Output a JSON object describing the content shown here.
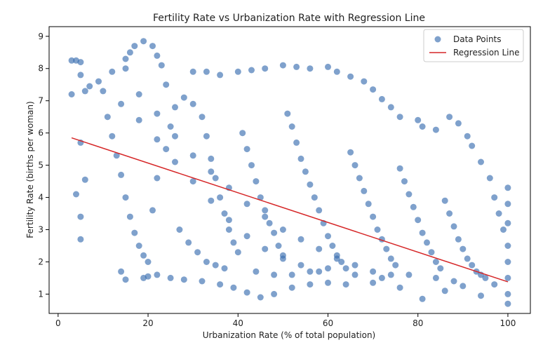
{
  "chart_data": {
    "type": "scatter",
    "title": "Fertility Rate vs Urbanization Rate with Regression Line",
    "xlabel": "Urbanization Rate (% of total population)",
    "ylabel": "Fertility Rate (births per woman)",
    "xlim": [
      -2,
      105
    ],
    "ylim": [
      0.4,
      9.3
    ],
    "xticks": [
      0,
      20,
      40,
      60,
      80,
      100
    ],
    "yticks": [
      1,
      2,
      3,
      4,
      5,
      6,
      7,
      8,
      9
    ],
    "grid": false,
    "legend": {
      "placement": "top-right",
      "entries": [
        "Data Points",
        "Regression Line"
      ]
    },
    "colors": {
      "points": "#3a6fb0",
      "regression": "#d62728"
    },
    "series": [
      {
        "name": "Data Points",
        "kind": "scatter",
        "points": [
          [
            3,
            8.25
          ],
          [
            4,
            8.25
          ],
          [
            5,
            8.2
          ],
          [
            5,
            7.8
          ],
          [
            6,
            7.3
          ],
          [
            5,
            5.7
          ],
          [
            4,
            4.1
          ],
          [
            5,
            3.4
          ],
          [
            5,
            2.7
          ],
          [
            6,
            4.55
          ],
          [
            3,
            7.2
          ],
          [
            7,
            7.45
          ],
          [
            9,
            7.6
          ],
          [
            12,
            7.9
          ],
          [
            15,
            8.0
          ],
          [
            17,
            8.7
          ],
          [
            19,
            8.85
          ],
          [
            21,
            8.7
          ],
          [
            22,
            8.4
          ],
          [
            23,
            8.1
          ],
          [
            16,
            8.5
          ],
          [
            15,
            8.3
          ],
          [
            24,
            7.5
          ],
          [
            30,
            7.9
          ],
          [
            33,
            7.9
          ],
          [
            36,
            7.8
          ],
          [
            40,
            7.9
          ],
          [
            43,
            7.95
          ],
          [
            46,
            8.0
          ],
          [
            50,
            8.1
          ],
          [
            53,
            8.05
          ],
          [
            56,
            8.0
          ],
          [
            60,
            8.05
          ],
          [
            62,
            7.9
          ],
          [
            65,
            7.75
          ],
          [
            68,
            7.6
          ],
          [
            70,
            7.35
          ],
          [
            72,
            7.05
          ],
          [
            74,
            6.8
          ],
          [
            76,
            6.5
          ],
          [
            80,
            6.4
          ],
          [
            81,
            6.2
          ],
          [
            84,
            6.1
          ],
          [
            87,
            6.5
          ],
          [
            89,
            6.3
          ],
          [
            91,
            5.9
          ],
          [
            92,
            5.6
          ],
          [
            94,
            5.1
          ],
          [
            96,
            4.6
          ],
          [
            97,
            4.0
          ],
          [
            98,
            3.5
          ],
          [
            99,
            3.0
          ],
          [
            100,
            4.3
          ],
          [
            100,
            3.8
          ],
          [
            100,
            3.2
          ],
          [
            100,
            2.5
          ],
          [
            100,
            2.0
          ],
          [
            100,
            1.5
          ],
          [
            100,
            1.0
          ],
          [
            100,
            0.7
          ],
          [
            14,
            1.7
          ],
          [
            15,
            1.45
          ],
          [
            19,
            1.5
          ],
          [
            20,
            1.55
          ],
          [
            22,
            1.6
          ],
          [
            25,
            1.5
          ],
          [
            28,
            1.45
          ],
          [
            32,
            1.4
          ],
          [
            36,
            1.3
          ],
          [
            39,
            1.2
          ],
          [
            42,
            1.05
          ],
          [
            45,
            0.9
          ],
          [
            48,
            1.0
          ],
          [
            52,
            1.2
          ],
          [
            56,
            1.3
          ],
          [
            60,
            1.35
          ],
          [
            64,
            1.3
          ],
          [
            70,
            1.35
          ],
          [
            76,
            1.2
          ],
          [
            81,
            0.85
          ],
          [
            86,
            1.1
          ],
          [
            90,
            1.25
          ],
          [
            94,
            0.95
          ],
          [
            97,
            1.3
          ],
          [
            11,
            6.5
          ],
          [
            12,
            5.9
          ],
          [
            13,
            5.3
          ],
          [
            14,
            4.7
          ],
          [
            15,
            4.0
          ],
          [
            16,
            3.4
          ],
          [
            17,
            2.9
          ],
          [
            18,
            2.5
          ],
          [
            19,
            2.2
          ],
          [
            20,
            2.0
          ],
          [
            21,
            3.6
          ],
          [
            22,
            4.6
          ],
          [
            24,
            5.5
          ],
          [
            25,
            6.2
          ],
          [
            26,
            6.8
          ],
          [
            28,
            7.1
          ],
          [
            30,
            6.9
          ],
          [
            32,
            6.5
          ],
          [
            33,
            5.9
          ],
          [
            34,
            5.2
          ],
          [
            35,
            4.6
          ],
          [
            36,
            4.0
          ],
          [
            37,
            3.5
          ],
          [
            38,
            3.0
          ],
          [
            39,
            2.6
          ],
          [
            40,
            2.3
          ],
          [
            41,
            6.0
          ],
          [
            42,
            5.5
          ],
          [
            43,
            5.0
          ],
          [
            44,
            4.5
          ],
          [
            45,
            4.0
          ],
          [
            46,
            3.6
          ],
          [
            47,
            3.2
          ],
          [
            48,
            2.9
          ],
          [
            49,
            2.5
          ],
          [
            50,
            2.2
          ],
          [
            51,
            6.6
          ],
          [
            52,
            6.2
          ],
          [
            53,
            5.7
          ],
          [
            54,
            5.2
          ],
          [
            55,
            4.8
          ],
          [
            56,
            4.4
          ],
          [
            57,
            4.0
          ],
          [
            58,
            3.6
          ],
          [
            59,
            3.2
          ],
          [
            60,
            2.8
          ],
          [
            61,
            2.5
          ],
          [
            62,
            2.2
          ],
          [
            63,
            2.0
          ],
          [
            64,
            1.8
          ],
          [
            65,
            5.4
          ],
          [
            66,
            5.0
          ],
          [
            67,
            4.6
          ],
          [
            68,
            4.2
          ],
          [
            69,
            3.8
          ],
          [
            70,
            3.4
          ],
          [
            71,
            3.0
          ],
          [
            72,
            2.7
          ],
          [
            73,
            2.4
          ],
          [
            74,
            2.1
          ],
          [
            75,
            1.9
          ],
          [
            76,
            4.9
          ],
          [
            77,
            4.5
          ],
          [
            78,
            4.1
          ],
          [
            79,
            3.7
          ],
          [
            80,
            3.3
          ],
          [
            81,
            2.9
          ],
          [
            82,
            2.6
          ],
          [
            83,
            2.3
          ],
          [
            84,
            2.0
          ],
          [
            85,
            1.8
          ],
          [
            86,
            3.9
          ],
          [
            87,
            3.5
          ],
          [
            88,
            3.1
          ],
          [
            89,
            2.7
          ],
          [
            90,
            2.4
          ],
          [
            91,
            2.1
          ],
          [
            92,
            1.9
          ],
          [
            93,
            1.7
          ],
          [
            94,
            1.6
          ],
          [
            95,
            1.5
          ],
          [
            18,
            7.2
          ],
          [
            22,
            6.6
          ],
          [
            26,
            5.9
          ],
          [
            30,
            5.3
          ],
          [
            34,
            4.8
          ],
          [
            38,
            4.3
          ],
          [
            42,
            3.8
          ],
          [
            46,
            3.4
          ],
          [
            50,
            3.0
          ],
          [
            54,
            2.7
          ],
          [
            58,
            2.4
          ],
          [
            62,
            2.1
          ],
          [
            66,
            1.9
          ],
          [
            70,
            1.7
          ],
          [
            74,
            1.6
          ],
          [
            10,
            7.3
          ],
          [
            14,
            6.9
          ],
          [
            18,
            6.4
          ],
          [
            22,
            5.8
          ],
          [
            26,
            5.1
          ],
          [
            30,
            4.5
          ],
          [
            34,
            3.9
          ],
          [
            38,
            3.3
          ],
          [
            42,
            2.8
          ],
          [
            46,
            2.4
          ],
          [
            50,
            2.1
          ],
          [
            54,
            1.9
          ],
          [
            58,
            1.7
          ],
          [
            27,
            3.0
          ],
          [
            29,
            2.6
          ],
          [
            31,
            2.3
          ],
          [
            33,
            2.0
          ],
          [
            35,
            1.9
          ],
          [
            37,
            1.8
          ],
          [
            44,
            1.7
          ],
          [
            48,
            1.6
          ],
          [
            52,
            1.6
          ],
          [
            56,
            1.7
          ],
          [
            60,
            1.8
          ],
          [
            66,
            1.6
          ],
          [
            72,
            1.5
          ],
          [
            78,
            1.6
          ],
          [
            84,
            1.5
          ],
          [
            88,
            1.4
          ]
        ]
      },
      {
        "name": "Regression Line",
        "kind": "line",
        "points": [
          [
            3,
            5.85
          ],
          [
            100,
            1.38
          ]
        ]
      }
    ]
  }
}
